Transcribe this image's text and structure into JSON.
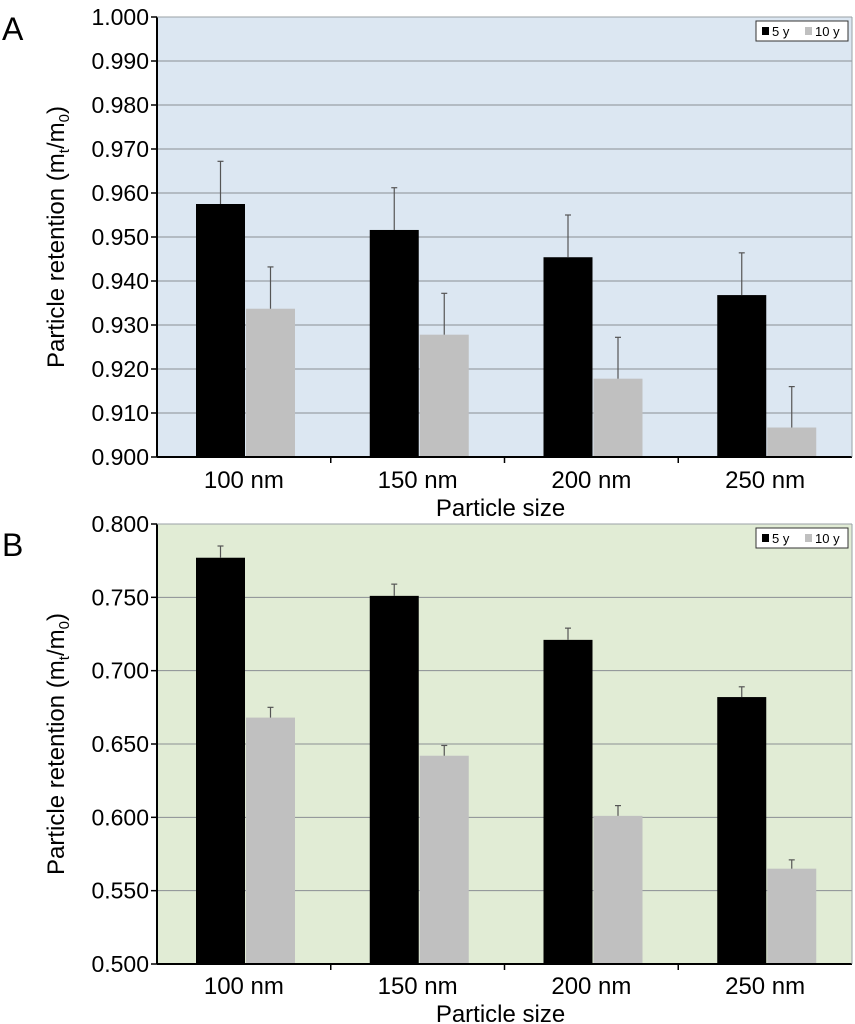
{
  "chart_data": [
    {
      "type": "bar",
      "panel_label": "A",
      "categories": [
        "100 nm",
        "150 nm",
        "200 nm",
        "250 nm"
      ],
      "ylim": [
        0.9,
        1.0
      ],
      "yticks": [
        "0.900",
        "0.910",
        "0.920",
        "0.930",
        "0.940",
        "0.950",
        "0.960",
        "0.970",
        "0.980",
        "0.990",
        "1.000"
      ],
      "xlabel": "Particle size",
      "ylabel": {
        "main": "Particle retention (m",
        "sub1": "t",
        "mid": "/m",
        "sub2": "0",
        "end": ")"
      },
      "background": "#dce7f2",
      "legend_position": "top-right",
      "series": [
        {
          "name": "5 y",
          "color": "#000000",
          "values": [
            0.9575,
            0.9516,
            0.9454,
            0.9368
          ],
          "errors": [
            0.0097,
            0.0096,
            0.0096,
            0.0096
          ]
        },
        {
          "name": "10 y",
          "color": "#c0c0c0",
          "values": [
            0.9337,
            0.9278,
            0.9178,
            0.9067
          ],
          "errors": [
            0.0095,
            0.0094,
            0.0094,
            0.0093
          ]
        }
      ]
    },
    {
      "type": "bar",
      "panel_label": "B",
      "categories": [
        "100 nm",
        "150 nm",
        "200 nm",
        "250 nm"
      ],
      "ylim": [
        0.5,
        0.8
      ],
      "yticks": [
        "0.500",
        "0.550",
        "0.600",
        "0.650",
        "0.700",
        "0.750",
        "0.800"
      ],
      "xlabel": "Particle size",
      "ylabel": {
        "main": "Particle retention (m",
        "sub1": "t",
        "mid": "/m",
        "sub2": "0",
        "end": ")"
      },
      "background": "#e1ecd5",
      "legend_position": "top-right",
      "series": [
        {
          "name": "5 y",
          "color": "#000000",
          "values": [
            0.777,
            0.751,
            0.721,
            0.682
          ],
          "errors": [
            0.008,
            0.008,
            0.008,
            0.007
          ]
        },
        {
          "name": "10 y",
          "color": "#c0c0c0",
          "values": [
            0.668,
            0.642,
            0.601,
            0.565
          ],
          "errors": [
            0.007,
            0.007,
            0.007,
            0.006
          ]
        }
      ]
    }
  ]
}
